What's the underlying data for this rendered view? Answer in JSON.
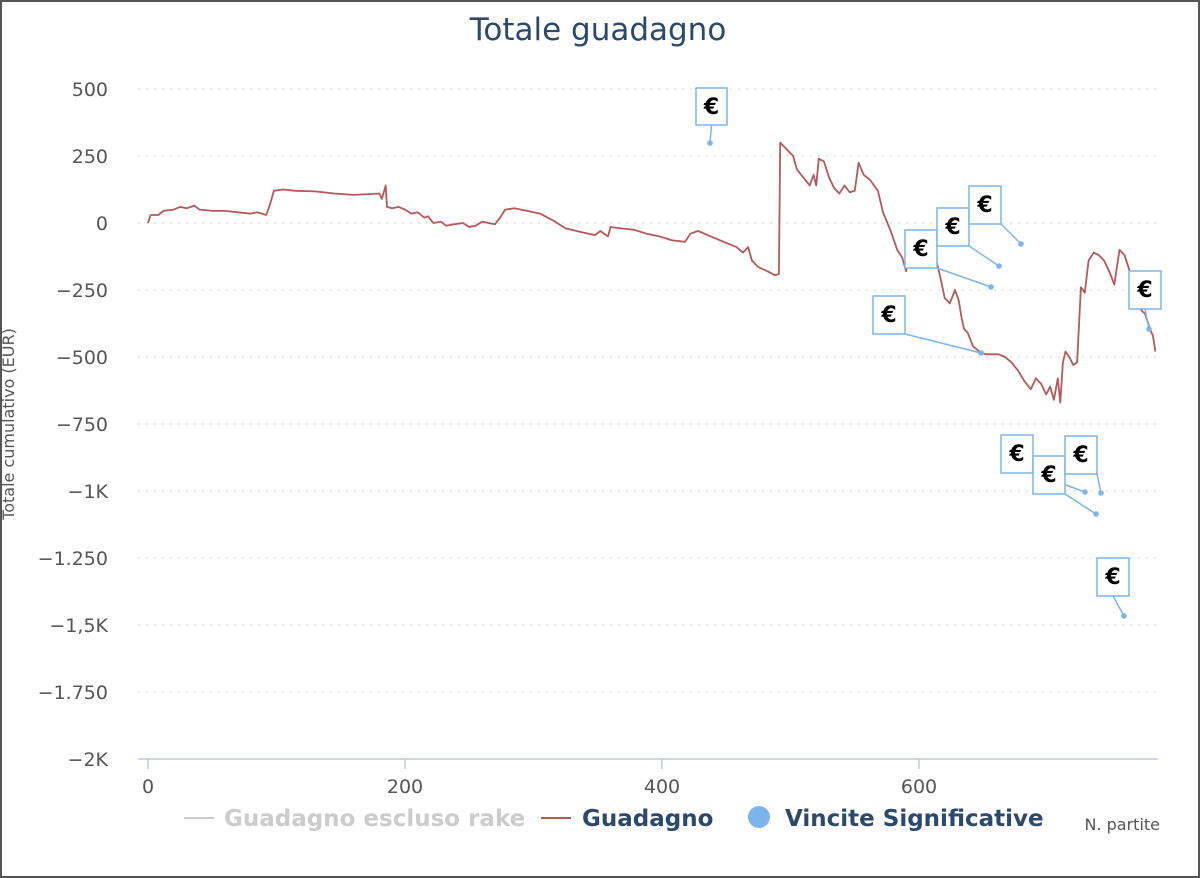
{
  "chart_data": {
    "type": "line",
    "title": "Totale guadagno",
    "xlabel": "N. partite",
    "ylabel": "Totale cumulativo (EUR)",
    "xlim": [
      0,
      785
    ],
    "ylim": [
      -2000,
      500
    ],
    "x_ticks": [
      {
        "value": 0,
        "label": "0"
      },
      {
        "value": 200,
        "label": "200"
      },
      {
        "value": 400,
        "label": "400"
      },
      {
        "value": 600,
        "label": "600"
      }
    ],
    "y_ticks": [
      {
        "value": 500,
        "label": "500"
      },
      {
        "value": 250,
        "label": "250"
      },
      {
        "value": 0,
        "label": "0"
      },
      {
        "value": -250,
        "label": "−250"
      },
      {
        "value": -500,
        "label": "−500"
      },
      {
        "value": -750,
        "label": "−750"
      },
      {
        "value": -1000,
        "label": "−1K"
      },
      {
        "value": -1250,
        "label": "−1.250"
      },
      {
        "value": -1500,
        "label": "−1,5K"
      },
      {
        "value": -1750,
        "label": "−1.750"
      },
      {
        "value": -2000,
        "label": "−2K"
      }
    ],
    "grid": true,
    "legend_position": "bottom",
    "series": [
      {
        "name": "Guadagno escluso rake",
        "color": "#cccccc",
        "hidden": true,
        "points": []
      },
      {
        "name": "Guadagno",
        "color": "#b5595a",
        "points": [
          [
            0,
            0
          ],
          [
            2,
            30
          ],
          [
            8,
            30
          ],
          [
            12,
            45
          ],
          [
            20,
            50
          ],
          [
            25,
            60
          ],
          [
            30,
            55
          ],
          [
            36,
            65
          ],
          [
            40,
            50
          ],
          [
            50,
            45
          ],
          [
            60,
            45
          ],
          [
            70,
            40
          ],
          [
            80,
            35
          ],
          [
            85,
            40
          ],
          [
            92,
            30
          ],
          [
            95,
            70
          ],
          [
            98,
            120
          ],
          [
            105,
            125
          ],
          [
            115,
            120
          ],
          [
            130,
            118
          ],
          [
            145,
            110
          ],
          [
            160,
            105
          ],
          [
            172,
            108
          ],
          [
            180,
            110
          ],
          [
            182,
            90
          ],
          [
            185,
            140
          ],
          [
            186,
            60
          ],
          [
            190,
            55
          ],
          [
            195,
            60
          ],
          [
            200,
            50
          ],
          [
            205,
            35
          ],
          [
            210,
            40
          ],
          [
            215,
            20
          ],
          [
            218,
            25
          ],
          [
            222,
            0
          ],
          [
            228,
            5
          ],
          [
            232,
            -10
          ],
          [
            238,
            -5
          ],
          [
            245,
            0
          ],
          [
            250,
            -15
          ],
          [
            255,
            -10
          ],
          [
            260,
            5
          ],
          [
            265,
            0
          ],
          [
            270,
            -5
          ],
          [
            274,
            20
          ],
          [
            278,
            50
          ],
          [
            285,
            55
          ],
          [
            295,
            45
          ],
          [
            305,
            35
          ],
          [
            315,
            10
          ],
          [
            325,
            -20
          ],
          [
            338,
            -35
          ],
          [
            348,
            -45
          ],
          [
            352,
            -30
          ],
          [
            358,
            -50
          ],
          [
            360,
            -15
          ],
          [
            368,
            -20
          ],
          [
            378,
            -25
          ],
          [
            388,
            -40
          ],
          [
            398,
            -50
          ],
          [
            408,
            -65
          ],
          [
            418,
            -70
          ],
          [
            422,
            -40
          ],
          [
            428,
            -30
          ],
          [
            438,
            -50
          ],
          [
            448,
            -70
          ],
          [
            458,
            -90
          ],
          [
            463,
            -110
          ],
          [
            467,
            -90
          ],
          [
            470,
            -140
          ],
          [
            475,
            -165
          ],
          [
            482,
            -180
          ],
          [
            488,
            -195
          ],
          [
            491,
            -190
          ],
          [
            492,
            300
          ],
          [
            498,
            270
          ],
          [
            502,
            250
          ],
          [
            505,
            200
          ],
          [
            510,
            170
          ],
          [
            515,
            140
          ],
          [
            518,
            180
          ],
          [
            520,
            140
          ],
          [
            522,
            240
          ],
          [
            526,
            230
          ],
          [
            530,
            170
          ],
          [
            534,
            130
          ],
          [
            538,
            110
          ],
          [
            542,
            140
          ],
          [
            546,
            115
          ],
          [
            550,
            120
          ],
          [
            553,
            225
          ],
          [
            557,
            180
          ],
          [
            562,
            160
          ],
          [
            568,
            120
          ],
          [
            572,
            40
          ],
          [
            578,
            -30
          ],
          [
            583,
            -100
          ],
          [
            587,
            -130
          ],
          [
            590,
            -180
          ],
          [
            593,
            -90
          ],
          [
            597,
            -130
          ],
          [
            601,
            -60
          ],
          [
            605,
            -90
          ],
          [
            609,
            -80
          ],
          [
            613,
            -130
          ],
          [
            616,
            -190
          ],
          [
            620,
            -280
          ],
          [
            624,
            -300
          ],
          [
            628,
            -250
          ],
          [
            631,
            -290
          ],
          [
            633,
            -350
          ],
          [
            635,
            -395
          ],
          [
            638,
            -410
          ],
          [
            642,
            -460
          ],
          [
            647,
            -480
          ],
          [
            652,
            -490
          ],
          [
            662,
            -490
          ],
          [
            667,
            -500
          ],
          [
            672,
            -520
          ],
          [
            677,
            -550
          ],
          [
            682,
            -590
          ],
          [
            687,
            -620
          ],
          [
            691,
            -580
          ],
          [
            695,
            -600
          ],
          [
            699,
            -640
          ],
          [
            702,
            -610
          ],
          [
            705,
            -660
          ],
          [
            708,
            -580
          ],
          [
            710,
            -670
          ],
          [
            712,
            -520
          ],
          [
            714,
            -480
          ],
          [
            717,
            -500
          ],
          [
            720,
            -530
          ],
          [
            723,
            -520
          ],
          [
            726,
            -240
          ],
          [
            729,
            -260
          ],
          [
            732,
            -140
          ],
          [
            736,
            -110
          ],
          [
            740,
            -120
          ],
          [
            744,
            -140
          ],
          [
            748,
            -180
          ],
          [
            752,
            -230
          ],
          [
            756,
            -100
          ],
          [
            760,
            -120
          ],
          [
            764,
            -180
          ],
          [
            768,
            -260
          ],
          [
            772,
            -320
          ],
          [
            776,
            -340
          ],
          [
            780,
            -400
          ],
          [
            782,
            -420
          ],
          [
            784,
            -480
          ]
        ]
      }
    ],
    "scatter_series": {
      "name": "Vincite Significative",
      "color": "#7cb5ec",
      "marker_label": "€"
    }
  }
}
